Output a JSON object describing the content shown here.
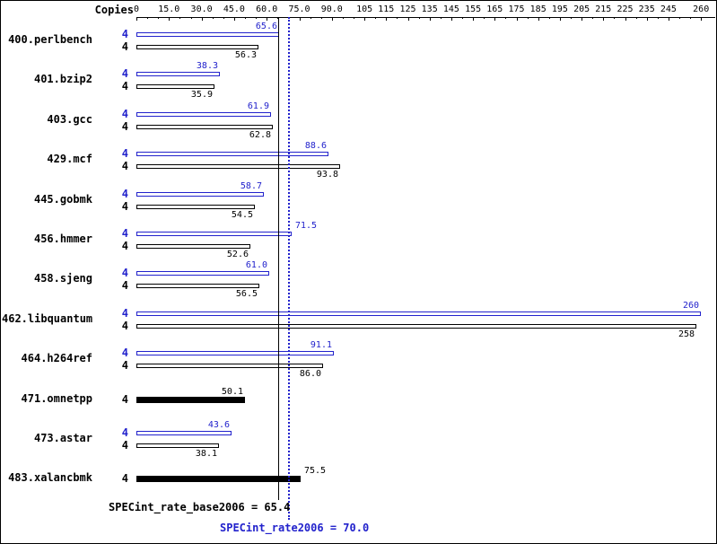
{
  "header": {
    "copies_label": "Copies"
  },
  "chart_data": {
    "type": "bar",
    "orientation": "horizontal",
    "grid": false,
    "legend_position": "none",
    "colors": {
      "peak": "#2222cc",
      "base": "#000000"
    },
    "axis": {
      "min": 0,
      "max": 265,
      "minor_tick_step": 5,
      "ticks": [
        {
          "value": 0,
          "label": "0"
        },
        {
          "value": 15,
          "label": "15.0"
        },
        {
          "value": 30,
          "label": "30.0"
        },
        {
          "value": 45,
          "label": "45.0"
        },
        {
          "value": 60,
          "label": "60.0"
        },
        {
          "value": 75,
          "label": "75.0"
        },
        {
          "value": 90,
          "label": "90.0"
        },
        {
          "value": 105,
          "label": "105"
        },
        {
          "value": 115,
          "label": "115"
        },
        {
          "value": 125,
          "label": "125"
        },
        {
          "value": 135,
          "label": "135"
        },
        {
          "value": 145,
          "label": "145"
        },
        {
          "value": 155,
          "label": "155"
        },
        {
          "value": 165,
          "label": "165"
        },
        {
          "value": 175,
          "label": "175"
        },
        {
          "value": 185,
          "label": "185"
        },
        {
          "value": 195,
          "label": "195"
        },
        {
          "value": 205,
          "label": "205"
        },
        {
          "value": 215,
          "label": "215"
        },
        {
          "value": 225,
          "label": "225"
        },
        {
          "value": 235,
          "label": "235"
        },
        {
          "value": 245,
          "label": "245"
        },
        {
          "value": 260,
          "label": "260"
        }
      ]
    },
    "benchmarks": [
      {
        "name": "400.perlbench",
        "bars": [
          {
            "series": "peak",
            "copies": "4",
            "value": 65.6,
            "label": "65.6"
          },
          {
            "series": "base",
            "copies": "4",
            "value": 56.3,
            "label": "56.3"
          }
        ]
      },
      {
        "name": "401.bzip2",
        "bars": [
          {
            "series": "peak",
            "copies": "4",
            "value": 38.3,
            "label": "38.3"
          },
          {
            "series": "base",
            "copies": "4",
            "value": 35.9,
            "label": "35.9"
          }
        ]
      },
      {
        "name": "403.gcc",
        "bars": [
          {
            "series": "peak",
            "copies": "4",
            "value": 61.9,
            "label": "61.9"
          },
          {
            "series": "base",
            "copies": "4",
            "value": 62.8,
            "label": "62.8"
          }
        ]
      },
      {
        "name": "429.mcf",
        "bars": [
          {
            "series": "peak",
            "copies": "4",
            "value": 88.6,
            "label": "88.6"
          },
          {
            "series": "base",
            "copies": "4",
            "value": 93.8,
            "label": "93.8"
          }
        ]
      },
      {
        "name": "445.gobmk",
        "bars": [
          {
            "series": "peak",
            "copies": "4",
            "value": 58.7,
            "label": "58.7"
          },
          {
            "series": "base",
            "copies": "4",
            "value": 54.5,
            "label": "54.5"
          }
        ]
      },
      {
        "name": "456.hmmer",
        "bars": [
          {
            "series": "peak",
            "copies": "4",
            "value": 71.5,
            "label": "71.5",
            "label_after_end": true
          },
          {
            "series": "base",
            "copies": "4",
            "value": 52.6,
            "label": "52.6"
          }
        ]
      },
      {
        "name": "458.sjeng",
        "bars": [
          {
            "series": "peak",
            "copies": "4",
            "value": 61.0,
            "label": "61.0"
          },
          {
            "series": "base",
            "copies": "4",
            "value": 56.5,
            "label": "56.5"
          }
        ]
      },
      {
        "name": "462.libquantum",
        "bars": [
          {
            "series": "peak",
            "copies": "4",
            "value": 260,
            "label": "260"
          },
          {
            "series": "base",
            "copies": "4",
            "value": 258,
            "label": "258"
          }
        ]
      },
      {
        "name": "464.h264ref",
        "bars": [
          {
            "series": "peak",
            "copies": "4",
            "value": 91.1,
            "label": "91.1"
          },
          {
            "series": "base",
            "copies": "4",
            "value": 86.0,
            "label": "86.0"
          }
        ]
      },
      {
        "name": "471.omnetpp",
        "bars": [
          {
            "series": "both",
            "copies": "4",
            "value": 50.1,
            "label": "50.1"
          }
        ]
      },
      {
        "name": "473.astar",
        "bars": [
          {
            "series": "peak",
            "copies": "4",
            "value": 43.6,
            "label": "43.6"
          },
          {
            "series": "base",
            "copies": "4",
            "value": 38.1,
            "label": "38.1"
          }
        ]
      },
      {
        "name": "483.xalancbmk",
        "bars": [
          {
            "series": "both",
            "copies": "4",
            "value": 75.5,
            "label": "75.5",
            "label_after_end": true
          }
        ]
      }
    ],
    "reference_lines": [
      {
        "name": "SPECint_rate_base2006",
        "value": 65.4,
        "style": "solid",
        "color": "#000000",
        "label": "SPECint_rate_base2006 = 65.4"
      },
      {
        "name": "SPECint_rate2006",
        "value": 70.0,
        "style": "dotted",
        "color": "#2222cc",
        "label": "SPECint_rate2006 = 70.0"
      }
    ]
  }
}
